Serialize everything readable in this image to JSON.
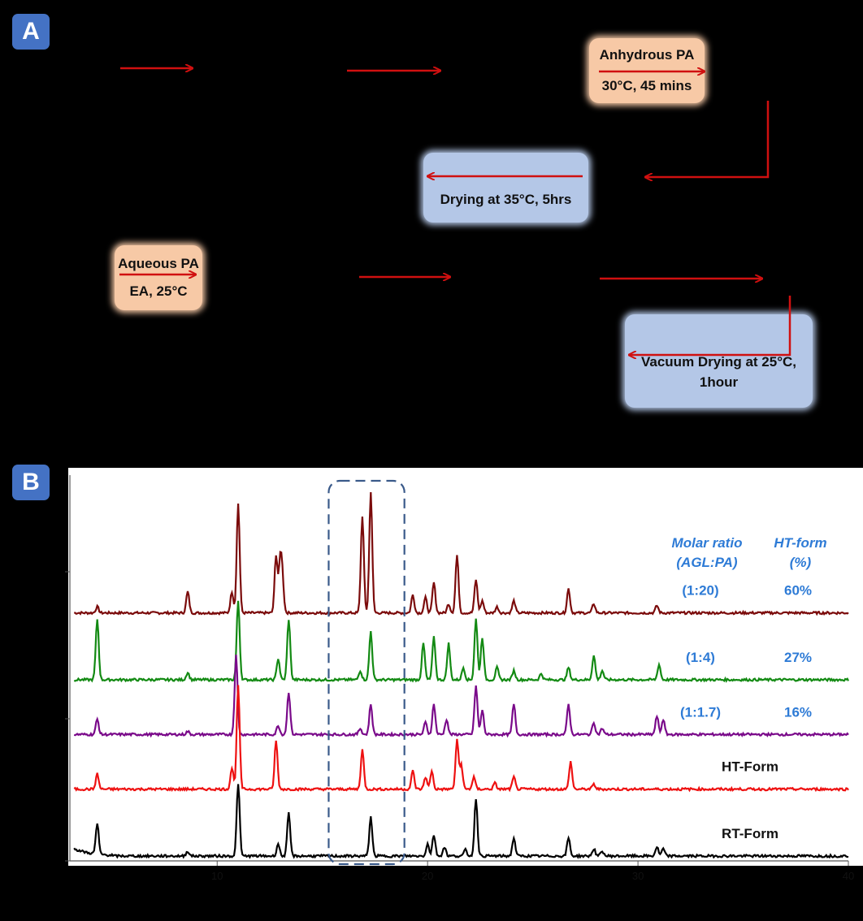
{
  "panel_a": {
    "badge": "A",
    "step_anhydrous": {
      "line1": "Anhydrous PA",
      "line2": "30°C, 45 mins"
    },
    "step_drying": {
      "line1": "Drying at 35°C, 5hrs"
    },
    "step_aqueous": {
      "line1": "Aqueous PA",
      "line2": "EA, 25°C"
    },
    "step_vacuum": {
      "line1": "Vacuum Drying at 25°C,",
      "line2": "1hour"
    }
  },
  "panel_b": {
    "badge": "B"
  },
  "colors": {
    "dark_red": "#7b0b0b",
    "green": "#138a13",
    "purple": "#7a0a8a",
    "red": "#ee1111",
    "black": "#000000",
    "blue_text": "#2e7bd6",
    "box_orange": "#f7c9a6",
    "box_blue": "#b4c7e7",
    "arrow": "#d01010"
  },
  "chart_data": {
    "type": "line",
    "xlabel": "",
    "ylabel": "",
    "xlim": [
      3,
      40
    ],
    "x_ticks": [
      "10",
      "20",
      "30",
      "40"
    ],
    "legend_header": {
      "col1_line1": "Molar ratio",
      "col1_line2": "(AGL:PA)",
      "col2_line1": "HT-form",
      "col2_line2": "(%)"
    },
    "series": [
      {
        "name": "(1:20)",
        "value_label": "60%",
        "color": "#7b0b0b",
        "offset": 4,
        "peaks": [
          [
            4.3,
            0.1
          ],
          [
            8.6,
            0.35
          ],
          [
            10.7,
            0.35
          ],
          [
            11.0,
            1.8
          ],
          [
            12.8,
            0.95
          ],
          [
            13.0,
            0.8
          ],
          [
            13.1,
            0.5
          ],
          [
            16.9,
            1.6
          ],
          [
            17.3,
            2.0
          ],
          [
            19.3,
            0.3
          ],
          [
            19.9,
            0.25
          ],
          [
            20.3,
            0.5
          ],
          [
            21.0,
            0.15
          ],
          [
            21.4,
            0.95
          ],
          [
            22.3,
            0.55
          ],
          [
            22.6,
            0.2
          ],
          [
            23.3,
            0.1
          ],
          [
            24.1,
            0.2
          ],
          [
            26.7,
            0.4
          ],
          [
            27.9,
            0.15
          ],
          [
            30.9,
            0.12
          ]
        ]
      },
      {
        "name": "(1:4)",
        "value_label": "27%",
        "color": "#138a13",
        "offset": 2.9,
        "peaks": [
          [
            4.3,
            1.0
          ],
          [
            8.6,
            0.12
          ],
          [
            11.0,
            1.3
          ],
          [
            12.9,
            0.35
          ],
          [
            13.4,
            1.0
          ],
          [
            16.8,
            0.15
          ],
          [
            17.3,
            0.8
          ],
          [
            19.8,
            0.6
          ],
          [
            20.3,
            0.7
          ],
          [
            21.0,
            0.6
          ],
          [
            21.7,
            0.2
          ],
          [
            22.3,
            1.0
          ],
          [
            22.6,
            0.7
          ],
          [
            23.3,
            0.2
          ],
          [
            24.1,
            0.15
          ],
          [
            25.4,
            0.1
          ],
          [
            26.7,
            0.2
          ],
          [
            27.9,
            0.4
          ],
          [
            28.3,
            0.15
          ],
          [
            31.0,
            0.25
          ]
        ]
      },
      {
        "name": "(1:1.7)",
        "value_label": "16%",
        "color": "#7a0a8a",
        "offset": 2.0,
        "peaks": [
          [
            4.3,
            0.25
          ],
          [
            8.6,
            0.05
          ],
          [
            10.9,
            1.3
          ],
          [
            12.9,
            0.15
          ],
          [
            13.4,
            0.7
          ],
          [
            16.8,
            0.1
          ],
          [
            17.3,
            0.5
          ],
          [
            19.9,
            0.2
          ],
          [
            20.3,
            0.5
          ],
          [
            20.9,
            0.25
          ],
          [
            22.3,
            0.8
          ],
          [
            22.6,
            0.4
          ],
          [
            24.1,
            0.5
          ],
          [
            26.7,
            0.5
          ],
          [
            27.9,
            0.2
          ],
          [
            28.3,
            0.1
          ],
          [
            30.9,
            0.3
          ],
          [
            31.2,
            0.25
          ]
        ]
      },
      {
        "name": "HT-Form",
        "value_label": "",
        "color": "#ee1111",
        "offset": 1.1,
        "peaks": [
          [
            4.3,
            0.25
          ],
          [
            10.7,
            0.35
          ],
          [
            11.0,
            1.7
          ],
          [
            12.8,
            0.8
          ],
          [
            16.9,
            0.65
          ],
          [
            19.3,
            0.3
          ],
          [
            19.9,
            0.2
          ],
          [
            20.2,
            0.3
          ],
          [
            21.4,
            0.8
          ],
          [
            21.6,
            0.4
          ],
          [
            22.2,
            0.2
          ],
          [
            23.2,
            0.1
          ],
          [
            24.1,
            0.2
          ],
          [
            26.8,
            0.45
          ],
          [
            27.9,
            0.08
          ]
        ]
      },
      {
        "name": "RT-Form",
        "value_label": "",
        "color": "#000000",
        "offset": 0,
        "peaks": [
          [
            4.3,
            0.5
          ],
          [
            8.6,
            0.08
          ],
          [
            11.0,
            1.2
          ],
          [
            12.9,
            0.2
          ],
          [
            13.4,
            0.7
          ],
          [
            17.3,
            0.65
          ],
          [
            20.0,
            0.2
          ],
          [
            20.3,
            0.35
          ],
          [
            20.8,
            0.15
          ],
          [
            21.8,
            0.1
          ],
          [
            22.3,
            0.95
          ],
          [
            24.1,
            0.3
          ],
          [
            26.7,
            0.3
          ],
          [
            27.9,
            0.12
          ],
          [
            28.3,
            0.08
          ],
          [
            30.9,
            0.15
          ],
          [
            31.2,
            0.12
          ]
        ]
      }
    ],
    "highlight_box_x": [
      15.3,
      18.9
    ]
  }
}
